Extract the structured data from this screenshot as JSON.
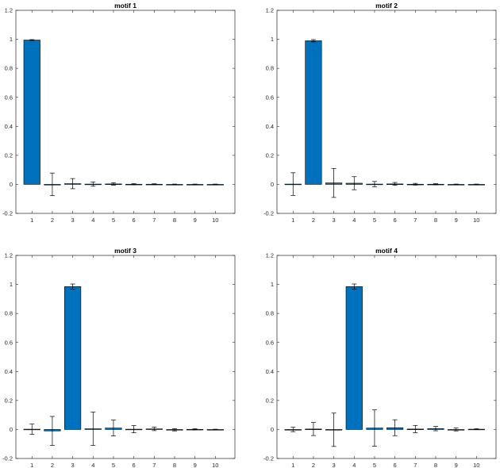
{
  "chart_data": [
    {
      "type": "bar",
      "title": "motif 1",
      "categories": [
        "1",
        "2",
        "3",
        "4",
        "5",
        "6",
        "7",
        "8",
        "9",
        "10"
      ],
      "values": [
        0.995,
        0.0,
        0.005,
        0.002,
        0.003,
        0.001,
        0.001,
        0.0,
        0.0,
        0.0
      ],
      "errors": [
        0.003,
        0.078,
        0.035,
        0.015,
        0.008,
        0.004,
        0.003,
        0.002,
        0.002,
        0.002
      ],
      "ylim": [
        -0.2,
        1.2
      ],
      "yticks": [
        "-0.2",
        "0",
        "0.2",
        "0.4",
        "0.6",
        "0.8",
        "1",
        "1.2"
      ],
      "bar_color": "#0072BD"
    },
    {
      "type": "bar",
      "title": "motif 2",
      "categories": [
        "1",
        "2",
        "3",
        "4",
        "5",
        "6",
        "7",
        "8",
        "9",
        "10"
      ],
      "values": [
        0.002,
        0.99,
        0.01,
        0.008,
        0.002,
        0.003,
        0.001,
        0.001,
        0.0,
        0.0
      ],
      "errors": [
        0.078,
        0.008,
        0.1,
        0.045,
        0.018,
        0.01,
        0.006,
        0.004,
        0.002,
        0.002
      ],
      "ylim": [
        -0.2,
        1.2
      ],
      "yticks": [
        "-0.2",
        "0",
        "0.2",
        "0.4",
        "0.6",
        "0.8",
        "1",
        "1.2"
      ],
      "bar_color": "#0072BD"
    },
    {
      "type": "bar",
      "title": "motif 3",
      "categories": [
        "1",
        "2",
        "3",
        "4",
        "5",
        "6",
        "7",
        "8",
        "9",
        "10"
      ],
      "values": [
        0.002,
        -0.01,
        0.985,
        0.005,
        0.01,
        0.002,
        0.004,
        -0.002,
        0.001,
        0.0
      ],
      "errors": [
        0.035,
        0.1,
        0.018,
        0.115,
        0.055,
        0.025,
        0.012,
        0.008,
        0.004,
        0.002
      ],
      "ylim": [
        -0.2,
        1.2
      ],
      "yticks": [
        "-0.2",
        "0",
        "0.2",
        "0.4",
        "0.6",
        "0.8",
        "1",
        "1.2"
      ],
      "bar_color": "#0072BD"
    },
    {
      "type": "bar",
      "title": "motif 4",
      "categories": [
        "1",
        "2",
        "3",
        "4",
        "5",
        "6",
        "7",
        "8",
        "9",
        "10"
      ],
      "values": [
        0.0,
        0.003,
        -0.002,
        0.985,
        0.01,
        0.012,
        0.003,
        0.006,
        0.0,
        0.002
      ],
      "errors": [
        0.015,
        0.045,
        0.115,
        0.018,
        0.125,
        0.055,
        0.025,
        0.015,
        0.01,
        0.003
      ],
      "ylim": [
        -0.2,
        1.2
      ],
      "yticks": [
        "-0.2",
        "0",
        "0.2",
        "0.4",
        "0.6",
        "0.8",
        "1",
        "1.2"
      ],
      "bar_color": "#0072BD"
    }
  ]
}
